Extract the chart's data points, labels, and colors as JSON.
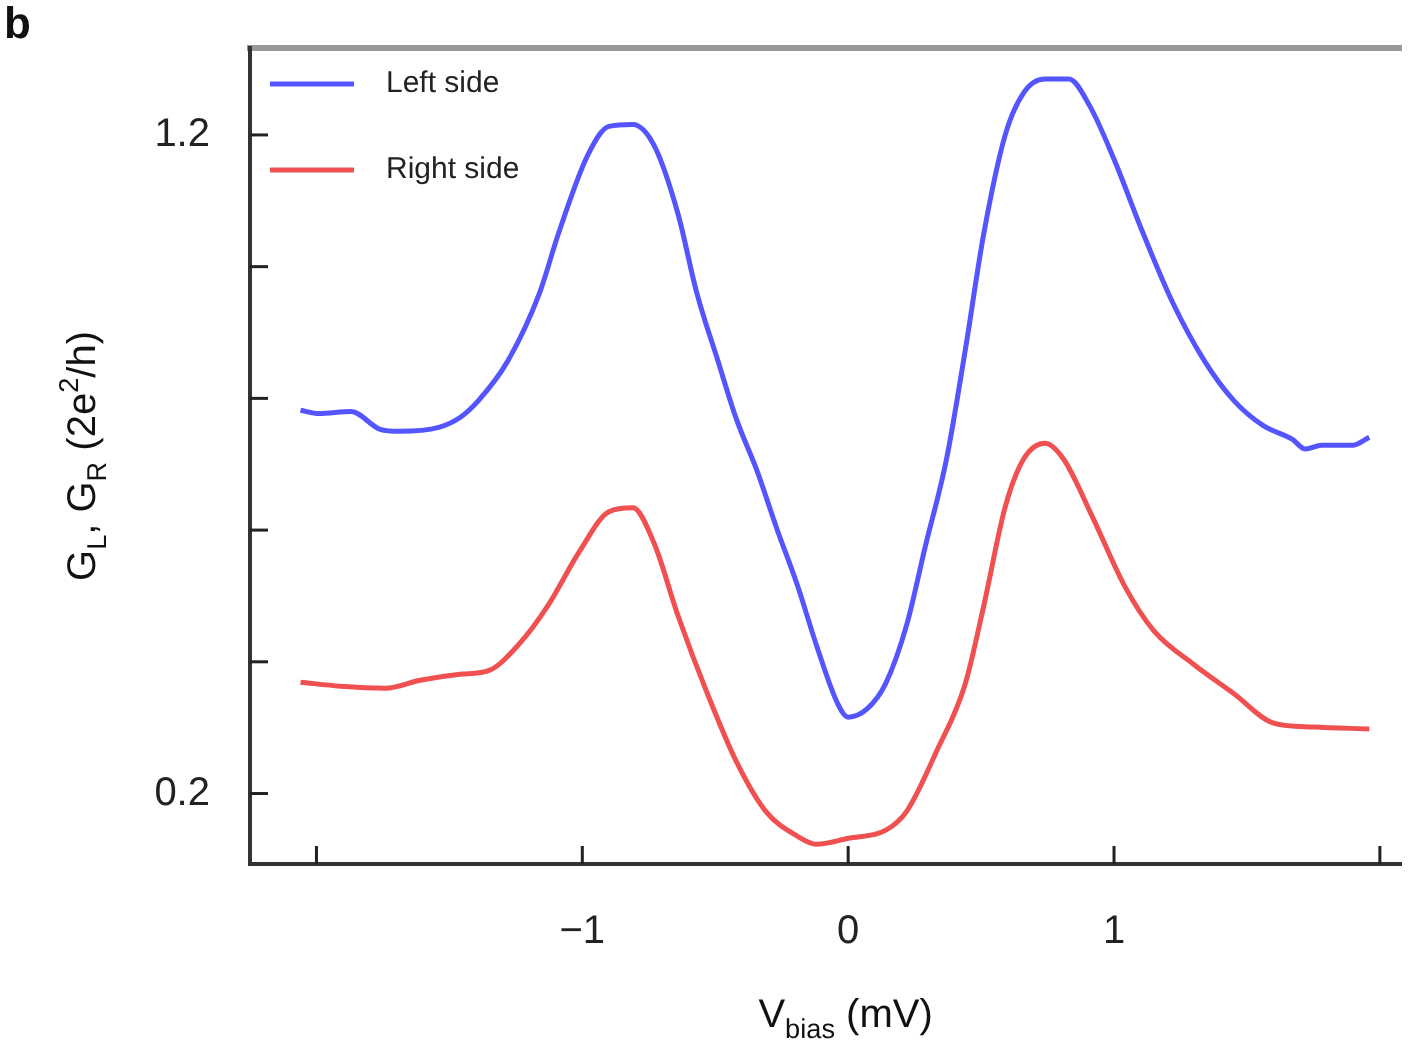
{
  "chart_data": {
    "type": "line",
    "title": "b",
    "xlabel": "V$_{bias}$ (mV)",
    "ylabel": "G$_{L}$, G$_{R}$ (2e$^{2}$/h)",
    "xlim": [
      -2.25,
      2.08
    ],
    "ylim": [
      0.093,
      1.332
    ],
    "xticks": [
      {
        "value": -2,
        "label": null
      },
      {
        "value": -1,
        "label": "−1"
      },
      0,
      1,
      {
        "value": 2,
        "label": null
      }
    ],
    "yticks": [
      0.2,
      {
        "value": 0.4,
        "label": null
      },
      {
        "value": 0.6,
        "label": null
      },
      {
        "value": 0.8,
        "label": null
      },
      {
        "value": 1.0,
        "label": null
      },
      1.2
    ],
    "legend": "top left",
    "series": [
      {
        "name": "Left side",
        "color": "#5555ff",
        "x": [
          -2.06,
          -1.99,
          -1.87,
          -1.76,
          -1.69,
          -1.54,
          -1.46,
          -1.39,
          -1.28,
          -1.16,
          -1.09,
          -0.98,
          -0.9,
          -0.81,
          -0.73,
          -0.64,
          -0.57,
          -0.49,
          -0.42,
          -0.34,
          -0.27,
          -0.19,
          -0.12,
          -0.04,
          0,
          0.07,
          0.14,
          0.22,
          0.29,
          0.37,
          0.44,
          0.51,
          0.59,
          0.66,
          0.74,
          0.83,
          0.91,
          1.0,
          1.11,
          1.22,
          1.34,
          1.45,
          1.56,
          1.67,
          1.72,
          1.78,
          1.9,
          1.96
        ],
        "values": [
          0.782,
          0.777,
          0.78,
          0.753,
          0.75,
          0.756,
          0.771,
          0.797,
          0.857,
          0.961,
          1.05,
          1.169,
          1.213,
          1.216,
          1.184,
          1.08,
          0.961,
          0.857,
          0.768,
          0.687,
          0.604,
          0.515,
          0.426,
          0.337,
          0.316,
          0.328,
          0.366,
          0.456,
          0.575,
          0.708,
          0.872,
          1.05,
          1.199,
          1.264,
          1.285,
          1.285,
          1.243,
          1.163,
          1.05,
          0.946,
          0.857,
          0.797,
          0.759,
          0.738,
          0.723,
          0.729,
          0.729,
          0.741
        ]
      },
      {
        "name": "Right side",
        "color": "#f05050",
        "x": [
          -2.06,
          -1.91,
          -1.74,
          -1.61,
          -1.46,
          -1.35,
          -1.24,
          -1.13,
          -1.01,
          -0.9,
          -0.81,
          -0.73,
          -0.64,
          -0.53,
          -0.42,
          -0.31,
          -0.19,
          -0.12,
          0,
          0.14,
          0.22,
          0.33,
          0.44,
          0.51,
          0.59,
          0.66,
          0.74,
          0.81,
          0.92,
          1.04,
          1.15,
          1.3,
          1.45,
          1.6,
          1.75,
          1.96
        ],
        "values": [
          0.369,
          0.363,
          0.36,
          0.372,
          0.381,
          0.387,
          0.426,
          0.485,
          0.568,
          0.628,
          0.634,
          0.58,
          0.47,
          0.352,
          0.248,
          0.173,
          0.135,
          0.123,
          0.132,
          0.144,
          0.173,
          0.262,
          0.366,
          0.485,
          0.634,
          0.708,
          0.732,
          0.708,
          0.619,
          0.515,
          0.447,
          0.396,
          0.352,
          0.307,
          0.301,
          0.298
        ]
      }
    ]
  }
}
